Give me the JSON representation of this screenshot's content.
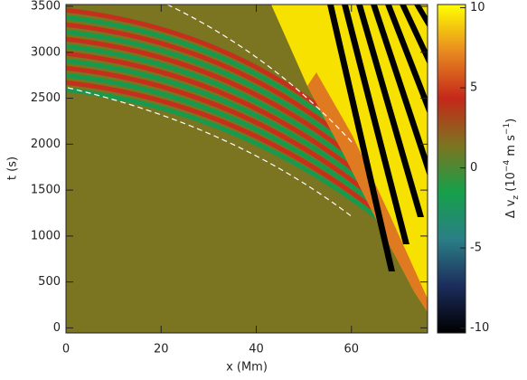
{
  "chart_data": {
    "type": "heatmap",
    "xlabel": "x (Mm)",
    "ylabel": "t (s)",
    "xlim": [
      0,
      76
    ],
    "ylim": [
      -55,
      3520
    ],
    "xticks": [
      0,
      20,
      40,
      60
    ],
    "yticks": [
      0,
      500,
      1000,
      1500,
      2000,
      2500,
      3000,
      3500
    ],
    "colorbar": {
      "label_parts": [
        "Δ v",
        "z",
        " (10",
        "−4",
        " m s",
        "−1",
        ")"
      ],
      "zlim": [
        -10.3,
        10.2
      ],
      "ticks": [
        -10,
        -5,
        0,
        5,
        10
      ],
      "colors": [
        "#000000",
        "#1c2c5c",
        "#2a7f86",
        "#16a04a",
        "#7d7420",
        "#c5281a",
        "#e88a20",
        "#ffff00"
      ]
    }
  }
}
